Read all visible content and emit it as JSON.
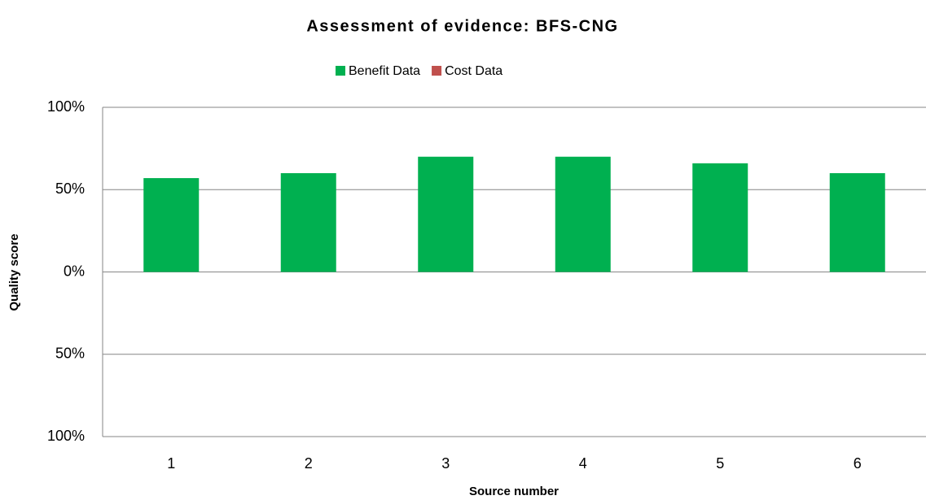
{
  "chart_data": {
    "type": "bar",
    "title": "Assessment of evidence: BFS-CNG",
    "xlabel": "Source number",
    "ylabel": "Quality score",
    "categories": [
      "1",
      "2",
      "3",
      "4",
      "5",
      "6"
    ],
    "series": [
      {
        "name": "Benefit Data",
        "color": "#00b050",
        "values": [
          57,
          60,
          70,
          70,
          66,
          60
        ]
      },
      {
        "name": "Cost Data",
        "color": "#c0504d",
        "values": [
          null,
          null,
          null,
          null,
          null,
          null
        ]
      }
    ],
    "ylim": [
      -100,
      100
    ],
    "yticks": [
      {
        "value": 100,
        "label": "100%"
      },
      {
        "value": 50,
        "label": "50%"
      },
      {
        "value": 0,
        "label": "0%"
      },
      {
        "value": -50,
        "label": "50%"
      },
      {
        "value": -100,
        "label": "100%"
      }
    ],
    "grid": true,
    "legend": "top"
  }
}
